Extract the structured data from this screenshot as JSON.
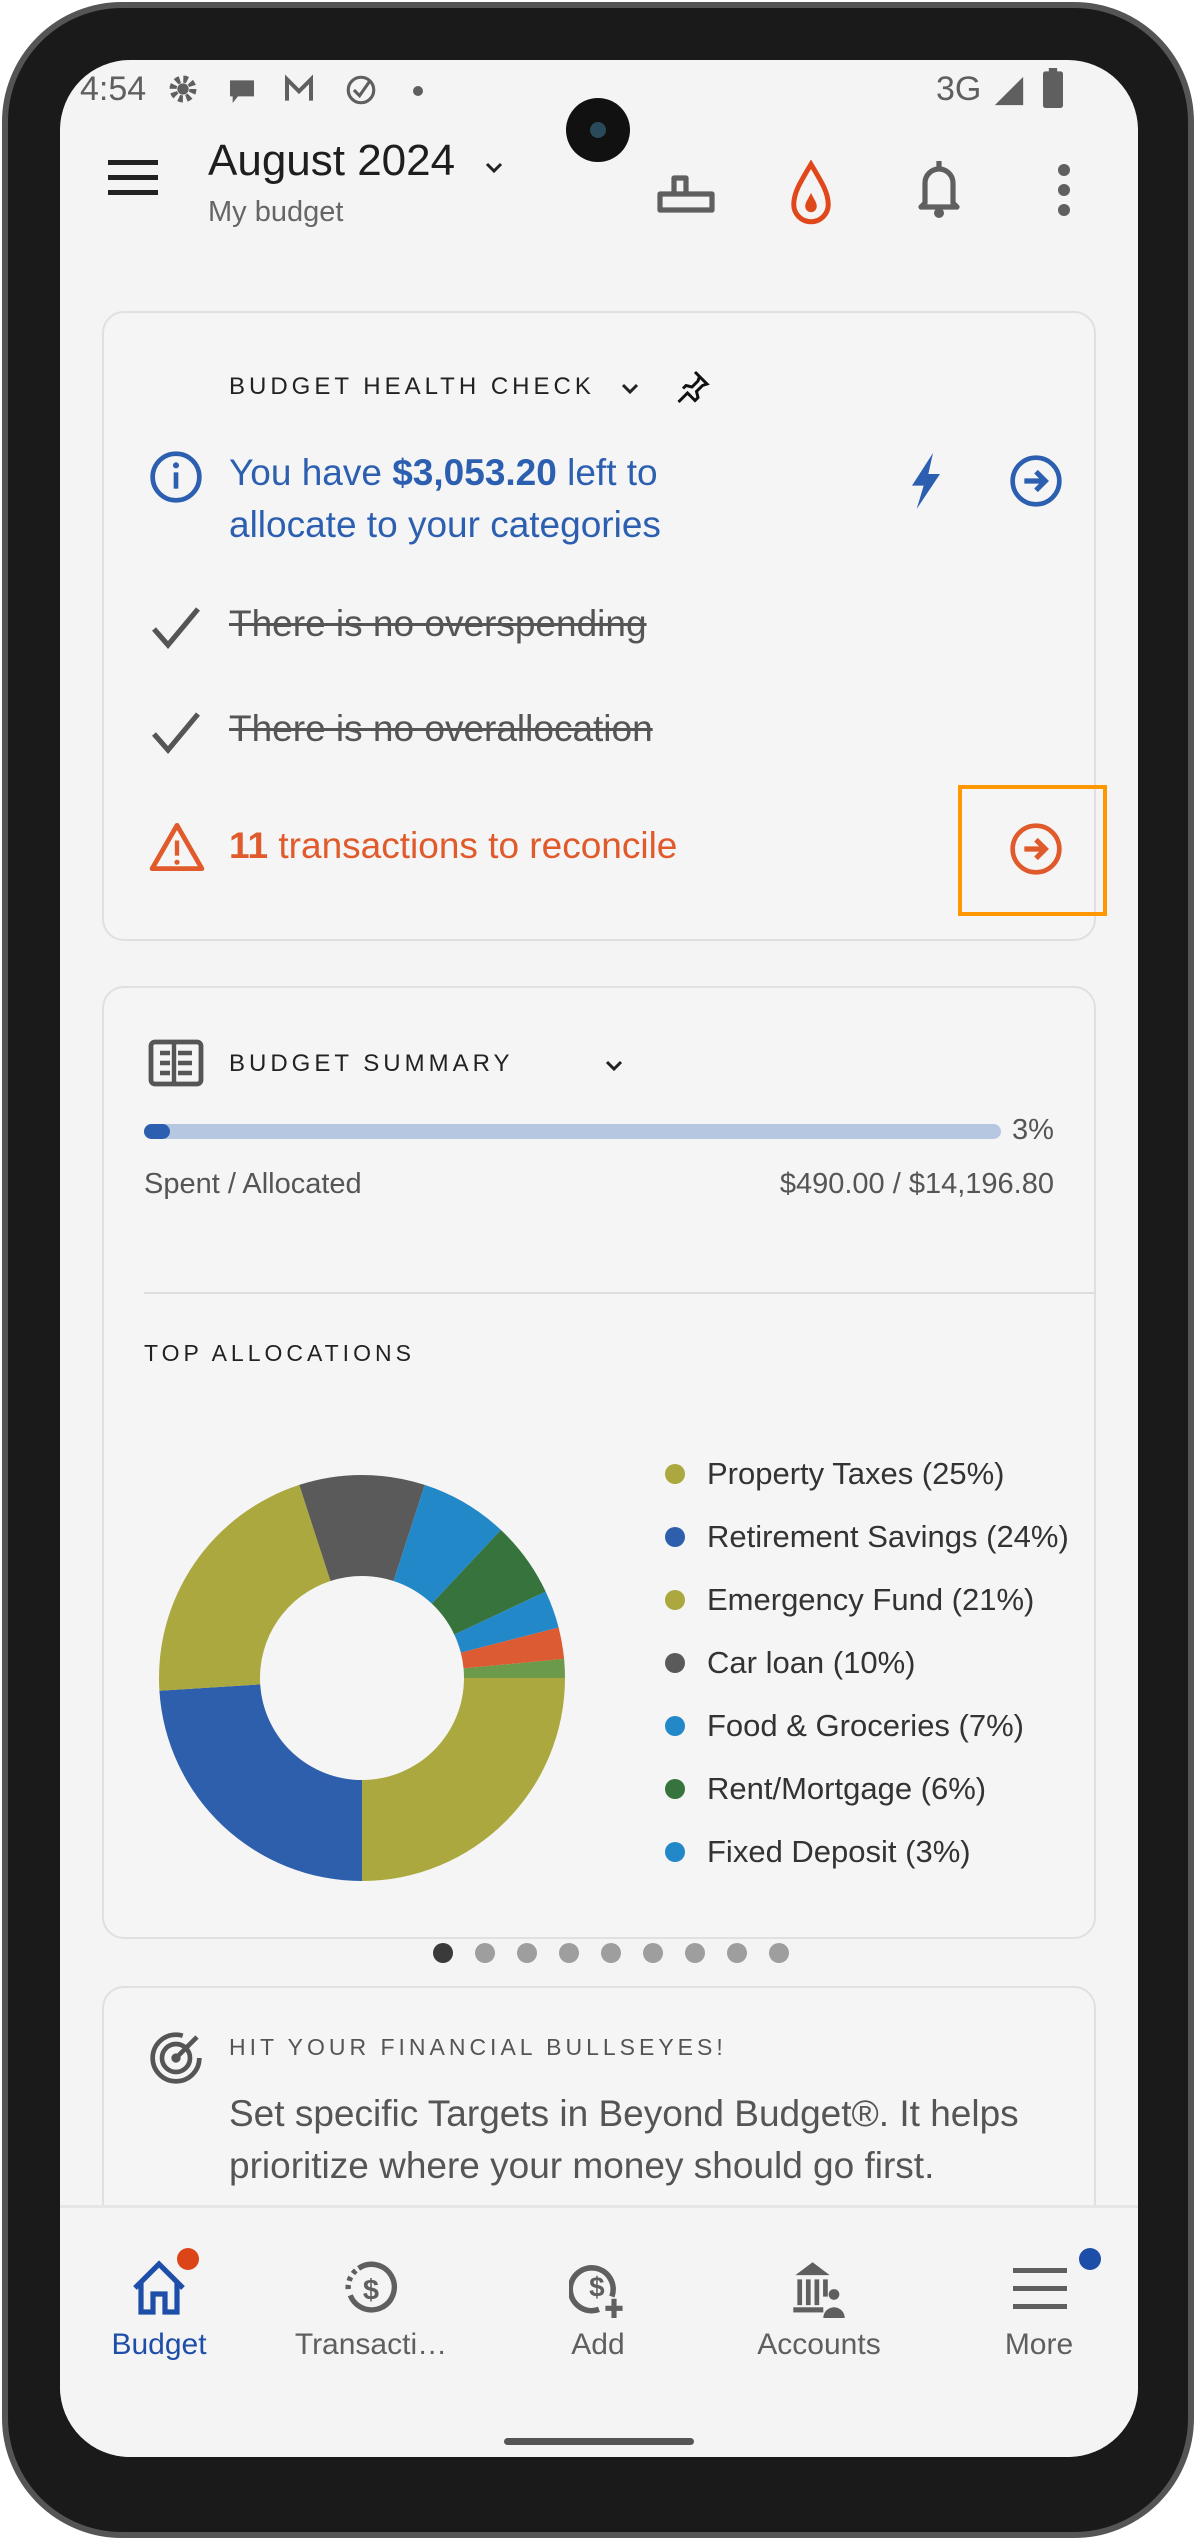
{
  "status_bar": {
    "time": "4:54",
    "network": "3G"
  },
  "header": {
    "title": "August 2024",
    "subtitle": "My budget"
  },
  "health_check": {
    "title": "BUDGET HEALTH CHECK",
    "info_prefix": "You have ",
    "info_amount": "$3,053.20",
    "info_suffix": " left to allocate to your categories",
    "items": [
      {
        "label": "There is no overspending"
      },
      {
        "label": "There is no overallocation"
      }
    ],
    "reconcile_count": "11",
    "reconcile_text": " transactions to reconcile",
    "colors": {
      "info": "#2d5fb0",
      "warning": "#e05a2b",
      "highlight": "#ff9800"
    }
  },
  "summary": {
    "title": "BUDGET SUMMARY",
    "progress_percent": 3,
    "progress_label": "3%",
    "spent_label": "Spent / Allocated",
    "spent_value": "$490.00 / $14,196.80",
    "allocations_title": "TOP ALLOCATIONS",
    "page_count": 9,
    "active_page": 0
  },
  "chart_data": {
    "type": "pie",
    "donut": true,
    "start": "3 o'clock, clockwise",
    "slices": [
      {
        "label": "Property Taxes (25%)",
        "value": 25,
        "color": "#aaa83e"
      },
      {
        "label": "Retirement Savings (24%)",
        "value": 24,
        "color": "#2d5fad"
      },
      {
        "label": "Emergency Fund (21%)",
        "value": 21,
        "color": "#aaa83e"
      },
      {
        "label": "Car loan (10%)",
        "value": 10,
        "color": "#5a5a5a"
      },
      {
        "label": "Food & Groceries (7%)",
        "value": 7,
        "color": "#2288c8"
      },
      {
        "label": "Rent/Mortgage (6%)",
        "value": 6,
        "color": "#37733c"
      },
      {
        "label": "Fixed Deposit (3%)",
        "value": 3,
        "color": "#2288c8"
      },
      {
        "label": "",
        "value": 2.5,
        "color": "#dd5b32"
      },
      {
        "label": "",
        "value": 1.5,
        "color": "#6a9a4a"
      }
    ]
  },
  "targets": {
    "title": "HIT YOUR FINANCIAL BULLSEYES!",
    "body": "Set specific Targets in Beyond Budget®. It helps prioritize where your money should go first."
  },
  "nav": [
    {
      "label": "Budget",
      "icon": "home-icon",
      "active": true
    },
    {
      "label": "Transacti…",
      "icon": "transactions-icon"
    },
    {
      "label": "Add",
      "icon": "add-transaction-icon"
    },
    {
      "label": "Accounts",
      "icon": "accounts-icon"
    },
    {
      "label": "More",
      "icon": "menu-icon"
    }
  ]
}
